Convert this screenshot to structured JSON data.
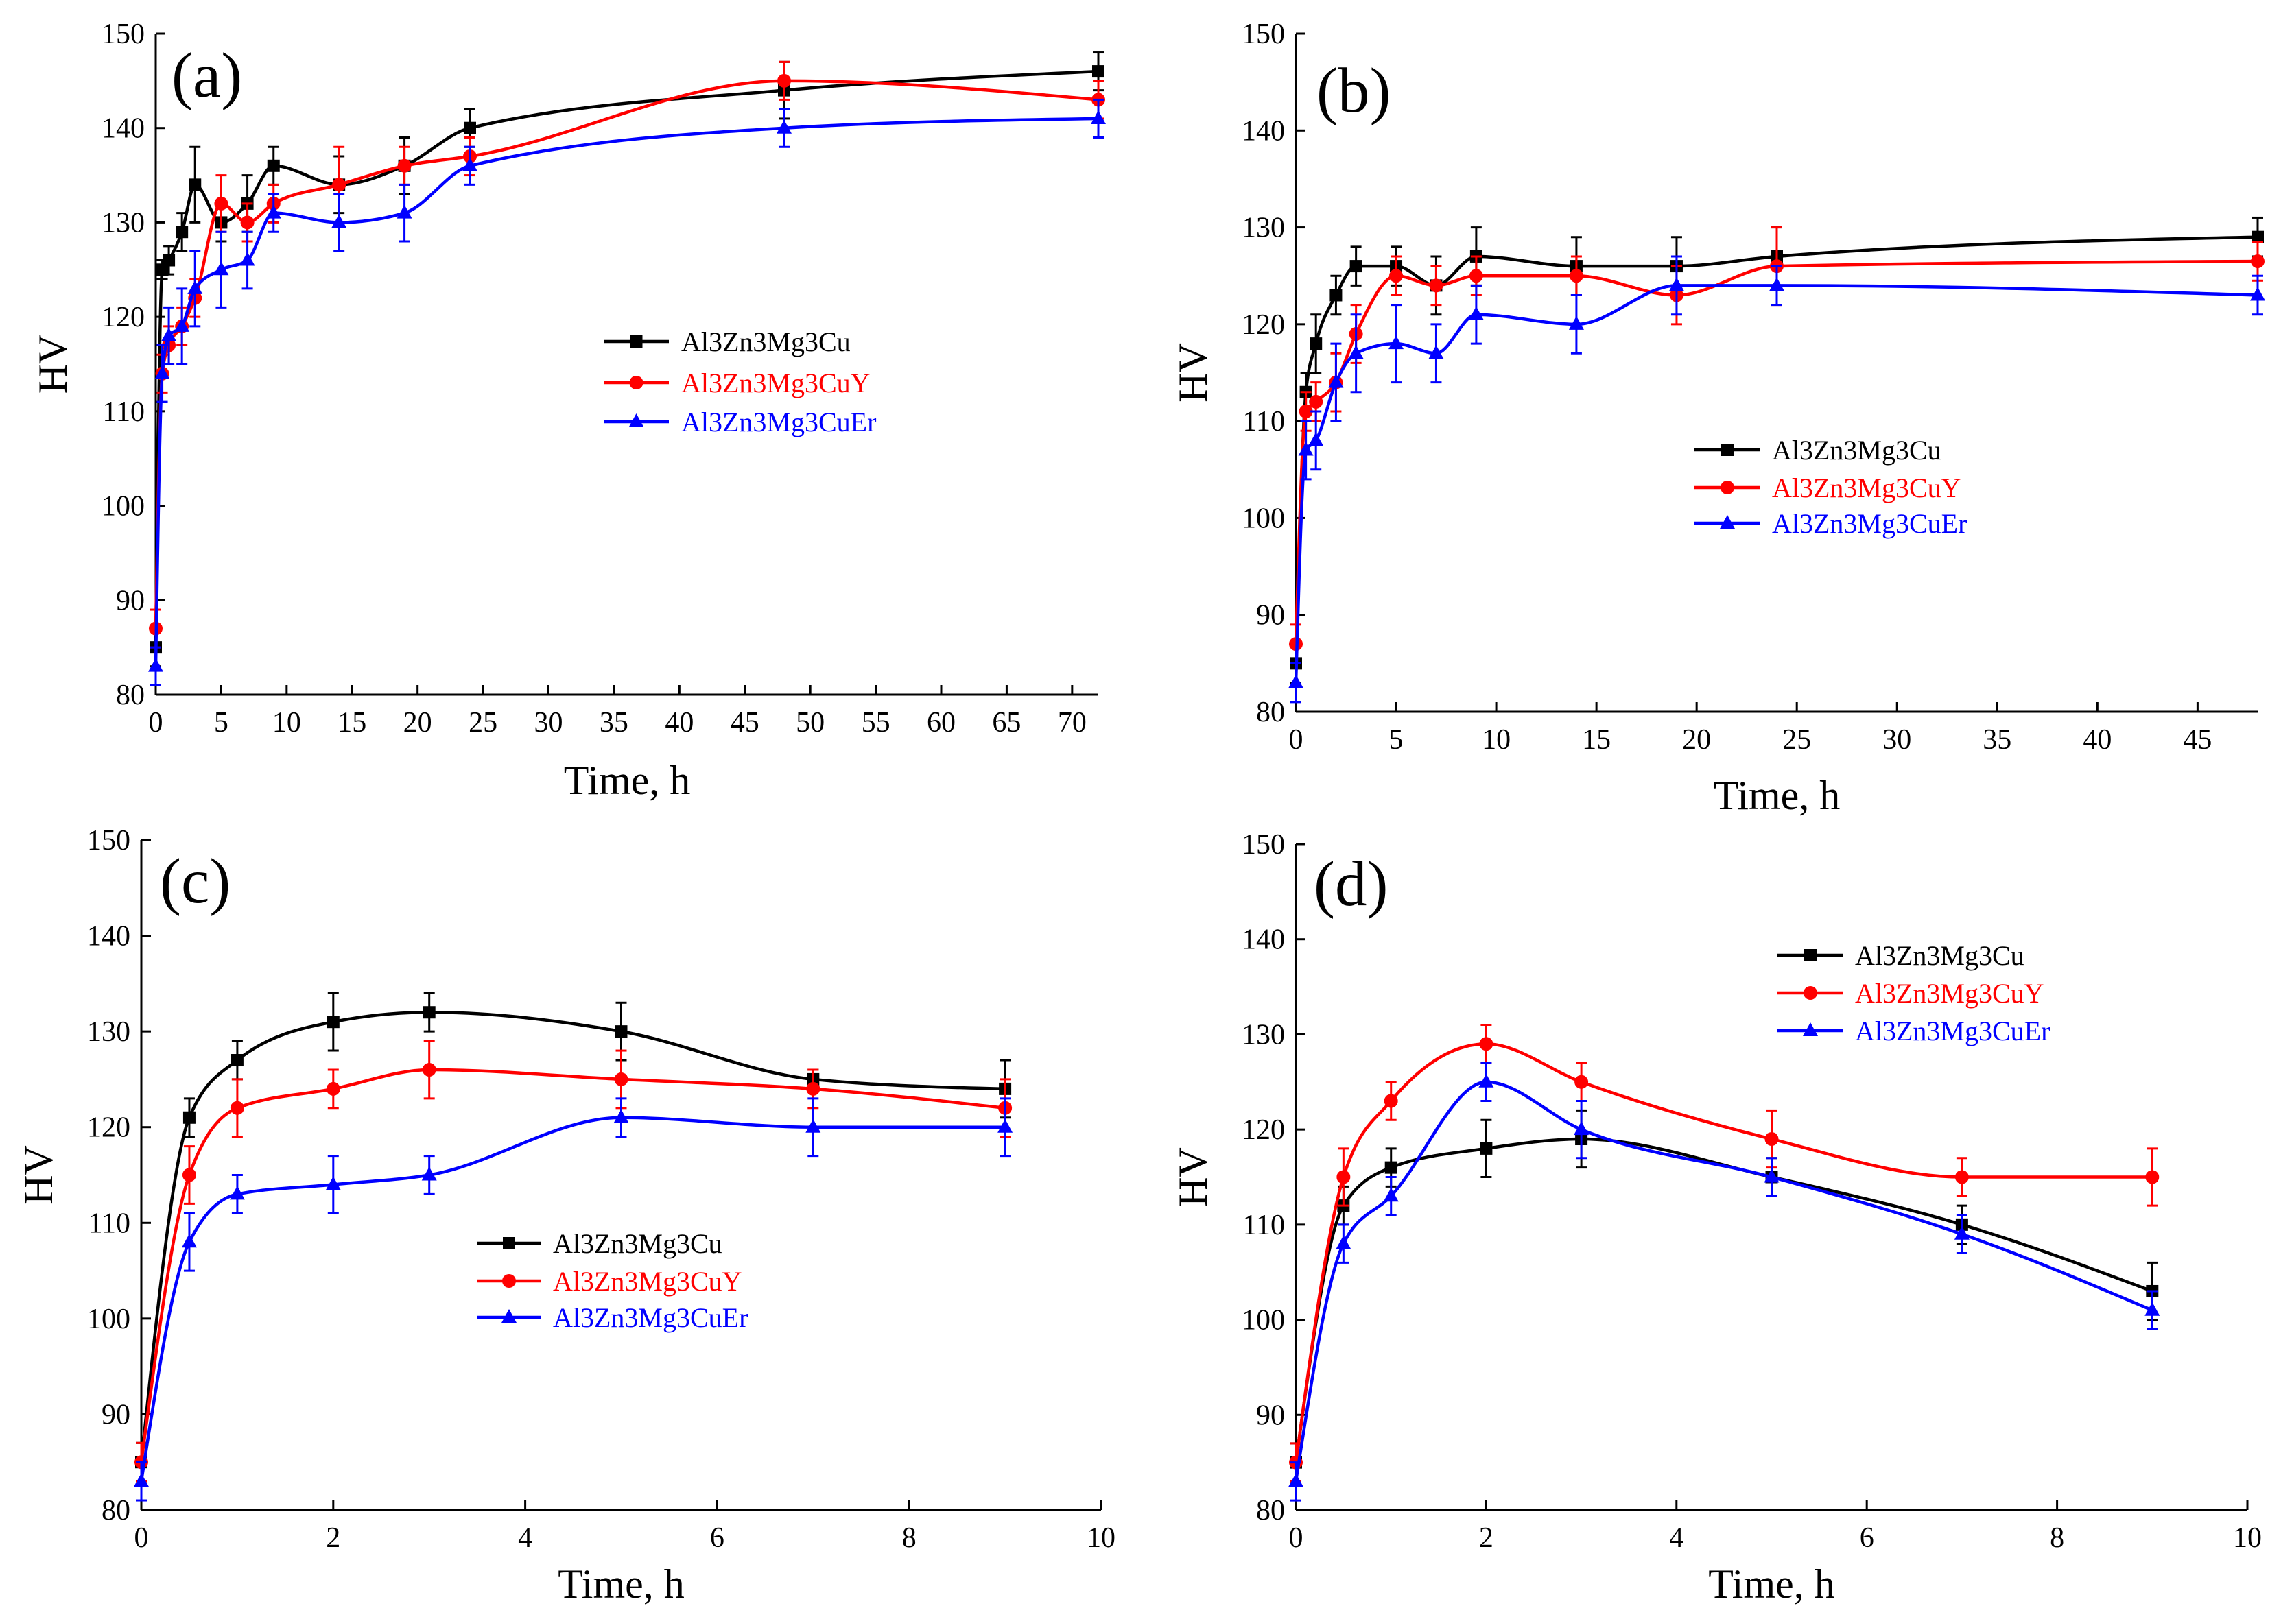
{
  "chart_data": [
    {
      "panel": "(a)",
      "type": "line",
      "xlabel": "Time, h",
      "ylabel": "HV",
      "xlim": [
        0,
        72
      ],
      "ylim": [
        80,
        150
      ],
      "xticks": [
        0,
        5,
        10,
        15,
        20,
        25,
        30,
        35,
        40,
        45,
        50,
        55,
        60,
        65,
        70
      ],
      "yticks": [
        80,
        90,
        100,
        110,
        120,
        130,
        140,
        150
      ],
      "grid": false,
      "legend": "center",
      "x": [
        0,
        0.5,
        1,
        2,
        3,
        5,
        7,
        9,
        14,
        19,
        24,
        48,
        72
      ],
      "series": [
        {
          "name": "Al3Zn3Mg3Cu",
          "color": "#000000",
          "marker": "square",
          "values": [
            85,
            125,
            126,
            129,
            134,
            130,
            132,
            136,
            134,
            136,
            140,
            144,
            146
          ],
          "errors": [
            2,
            1,
            1.5,
            2,
            4,
            2,
            3,
            2,
            3,
            3,
            2,
            3,
            2
          ]
        },
        {
          "name": "Al3Zn3Mg3CuY",
          "color": "#ff0000",
          "marker": "circle",
          "values": [
            87,
            114,
            117,
            119,
            122,
            132,
            130,
            132,
            134,
            136,
            137,
            145,
            143
          ],
          "errors": [
            2,
            2,
            2,
            2,
            2,
            3,
            2,
            2,
            4,
            2,
            2,
            2,
            2
          ]
        },
        {
          "name": "Al3Zn3Mg3CuEr",
          "color": "#0000ff",
          "marker": "triangle",
          "values": [
            83,
            114,
            118,
            119,
            123,
            125,
            126,
            131,
            130,
            131,
            136,
            140,
            141
          ],
          "errors": [
            2,
            3,
            3,
            4,
            4,
            4,
            3,
            2,
            3,
            3,
            2,
            2,
            2
          ]
        }
      ]
    },
    {
      "panel": "(b)",
      "type": "line",
      "xlabel": "Time, h",
      "ylabel": "HV",
      "xlim": [
        0,
        48
      ],
      "ylim": [
        80,
        150
      ],
      "xticks": [
        0,
        5,
        10,
        15,
        20,
        25,
        30,
        35,
        40,
        45
      ],
      "yticks": [
        80,
        90,
        100,
        110,
        120,
        130,
        140,
        150
      ],
      "grid": false,
      "legend": "center-right",
      "x": [
        0,
        0.5,
        1,
        2,
        3,
        5,
        7,
        9,
        14,
        19,
        24,
        48
      ],
      "series": [
        {
          "name": "Al3Zn3Mg3Cu",
          "color": "#000000",
          "marker": "square",
          "values": [
            85,
            113,
            118,
            123,
            126,
            126,
            124,
            127,
            126,
            126,
            127,
            129
          ],
          "errors": [
            2,
            2,
            3,
            2,
            2,
            2,
            3,
            3,
            3,
            3,
            3,
            2
          ]
        },
        {
          "name": "Al3Zn3Mg3CuY",
          "color": "#ff0000",
          "marker": "circle",
          "values": [
            87,
            111,
            112,
            114,
            119,
            125,
            124,
            125,
            125,
            123,
            126,
            126.5
          ],
          "errors": [
            2,
            2,
            2,
            3,
            3,
            2,
            2,
            2,
            2,
            3,
            4,
            2
          ]
        },
        {
          "name": "Al3Zn3Mg3CuEr",
          "color": "#0000ff",
          "marker": "triangle",
          "values": [
            83,
            107,
            108,
            114,
            117,
            118,
            117,
            121,
            120,
            124,
            124,
            123
          ],
          "errors": [
            2,
            3,
            3,
            4,
            4,
            4,
            3,
            3,
            3,
            3,
            2,
            2
          ]
        }
      ]
    },
    {
      "panel": "(c)",
      "type": "line",
      "xlabel": "Time, h",
      "ylabel": "HV",
      "xlim": [
        0,
        10
      ],
      "ylim": [
        80,
        150
      ],
      "xticks": [
        0,
        2,
        4,
        6,
        8,
        10
      ],
      "yticks": [
        80,
        90,
        100,
        110,
        120,
        130,
        140,
        150
      ],
      "grid": false,
      "legend": "lower-center",
      "x": [
        0,
        0.5,
        1,
        2,
        3,
        5,
        7,
        9
      ],
      "series": [
        {
          "name": "Al3Zn3Mg3Cu",
          "color": "#000000",
          "marker": "square",
          "values": [
            85,
            121,
            127,
            131,
            132,
            130,
            125,
            124
          ],
          "errors": [
            2,
            2,
            2,
            3,
            2,
            3,
            1,
            3
          ]
        },
        {
          "name": "Al3Zn3Mg3CuY",
          "color": "#ff0000",
          "marker": "circle",
          "values": [
            85,
            115,
            122,
            124,
            126,
            125,
            124,
            122
          ],
          "errors": [
            2,
            3,
            3,
            2,
            3,
            3,
            2,
            3
          ]
        },
        {
          "name": "Al3Zn3Mg3CuEr",
          "color": "#0000ff",
          "marker": "triangle",
          "values": [
            83,
            108,
            113,
            114,
            115,
            121,
            120,
            120
          ],
          "errors": [
            2,
            3,
            2,
            3,
            2,
            2,
            3,
            3
          ]
        }
      ]
    },
    {
      "panel": "(d)",
      "type": "line",
      "xlabel": "Time, h",
      "ylabel": "HV",
      "xlim": [
        0,
        10
      ],
      "ylim": [
        80,
        150
      ],
      "xticks": [
        0,
        2,
        4,
        6,
        8,
        10
      ],
      "yticks": [
        80,
        90,
        100,
        110,
        120,
        130,
        140,
        150
      ],
      "grid": false,
      "legend": "upper-right",
      "x": [
        0,
        0.5,
        1,
        2,
        3,
        5,
        7,
        9
      ],
      "series": [
        {
          "name": "Al3Zn3Mg3Cu",
          "color": "#000000",
          "marker": "square",
          "values": [
            85,
            112,
            116,
            118,
            119,
            115,
            110,
            103
          ],
          "errors": [
            2,
            2,
            2,
            3,
            3,
            2,
            2,
            3
          ]
        },
        {
          "name": "Al3Zn3Mg3CuY",
          "color": "#ff0000",
          "marker": "circle",
          "values": [
            85,
            115,
            123,
            129,
            125,
            119,
            115,
            115
          ],
          "errors": [
            2,
            3,
            2,
            2,
            2,
            3,
            2,
            3
          ]
        },
        {
          "name": "Al3Zn3Mg3CuEr",
          "color": "#0000ff",
          "marker": "triangle",
          "values": [
            83,
            108,
            113,
            125,
            120,
            115,
            109,
            101
          ],
          "errors": [
            2,
            2,
            2,
            2,
            3,
            2,
            2,
            2
          ]
        }
      ]
    }
  ]
}
